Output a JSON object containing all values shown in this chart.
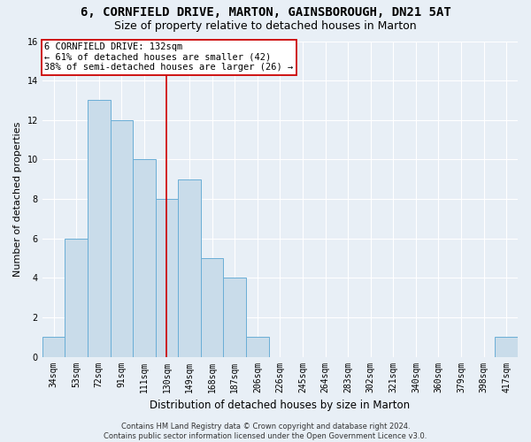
{
  "title": "6, CORNFIELD DRIVE, MARTON, GAINSBOROUGH, DN21 5AT",
  "subtitle": "Size of property relative to detached houses in Marton",
  "xlabel": "Distribution of detached houses by size in Marton",
  "ylabel": "Number of detached properties",
  "categories": [
    "34sqm",
    "53sqm",
    "72sqm",
    "91sqm",
    "111sqm",
    "130sqm",
    "149sqm",
    "168sqm",
    "187sqm",
    "206sqm",
    "226sqm",
    "245sqm",
    "264sqm",
    "283sqm",
    "302sqm",
    "321sqm",
    "340sqm",
    "360sqm",
    "379sqm",
    "398sqm",
    "417sqm"
  ],
  "values": [
    1,
    6,
    13,
    12,
    10,
    8,
    9,
    5,
    4,
    1,
    0,
    0,
    0,
    0,
    0,
    0,
    0,
    0,
    0,
    0,
    1
  ],
  "bar_color": "#c9dcea",
  "bar_edge_color": "#6aaed6",
  "vline_x": 5.0,
  "annotation_text": "6 CORNFIELD DRIVE: 132sqm\n← 61% of detached houses are smaller (42)\n38% of semi-detached houses are larger (26) →",
  "annotation_box_color": "#ffffff",
  "annotation_box_edge": "#cc0000",
  "vline_color": "#cc0000",
  "footer_text": "Contains HM Land Registry data © Crown copyright and database right 2024.\nContains public sector information licensed under the Open Government Licence v3.0.",
  "ylim": [
    0,
    16
  ],
  "yticks": [
    0,
    2,
    4,
    6,
    8,
    10,
    12,
    14,
    16
  ],
  "title_fontsize": 10,
  "subtitle_fontsize": 9,
  "tick_fontsize": 7,
  "ylabel_fontsize": 8,
  "xlabel_fontsize": 8.5,
  "annotation_fontsize": 7.5,
  "footer_fontsize": 6,
  "background_color": "#e8eff6",
  "plot_bg_color": "#e8eff6",
  "grid_color": "#ffffff"
}
